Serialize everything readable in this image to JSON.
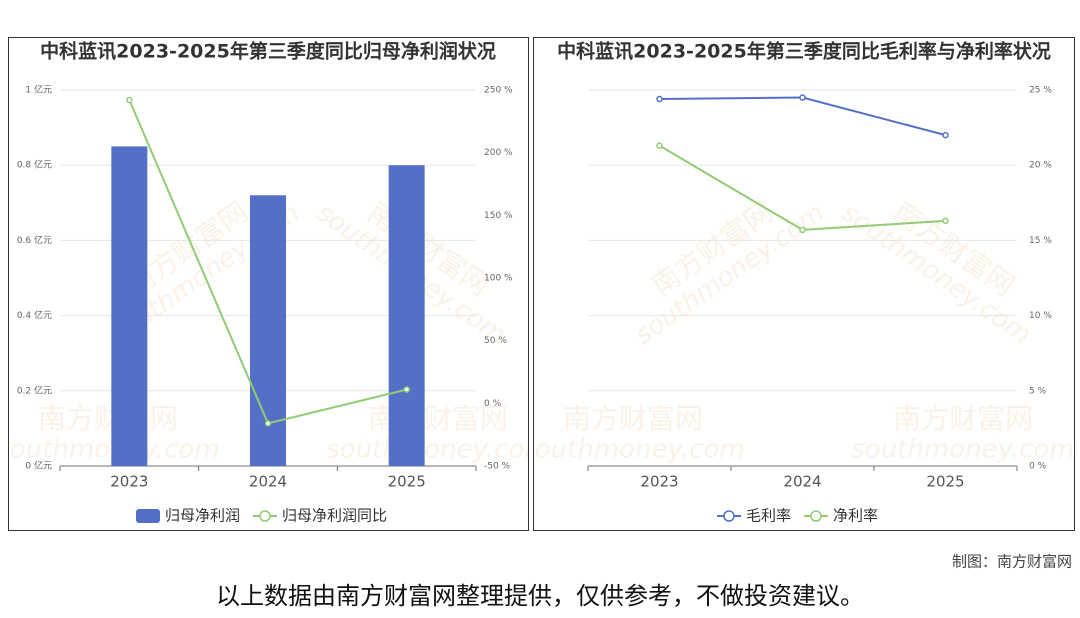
{
  "chart_data": [
    {
      "type": "bar",
      "title": "中科蓝讯2023-2025年第三季度同比归母净利润状况",
      "categories": [
        "2023",
        "2024",
        "2025"
      ],
      "series": [
        {
          "name": "归母净利润",
          "color": "#5470c6",
          "type": "bar",
          "values": [
            0.85,
            0.72,
            0.8
          ]
        },
        {
          "name": "归母净利润同比",
          "color": "#91cc75",
          "type": "line",
          "axis": "y2",
          "values": [
            242,
            -16,
            11
          ]
        }
      ],
      "ylim": [
        0,
        1
      ],
      "yticks": [
        {
          "value": 0,
          "label": "0 亿元"
        },
        {
          "value": 0.2,
          "label": "0.2 亿元"
        },
        {
          "value": 0.4,
          "label": "0.4 亿元"
        },
        {
          "value": 0.6,
          "label": "0.6 亿元"
        },
        {
          "value": 0.8,
          "label": "0.8 亿元"
        },
        {
          "value": 1,
          "label": "1 亿元"
        }
      ],
      "y2lim": [
        -50,
        250
      ],
      "y2ticks": [
        {
          "value": -50,
          "label": "-50 %"
        },
        {
          "value": 0,
          "label": "0 %"
        },
        {
          "value": 50,
          "label": "50 %"
        },
        {
          "value": 100,
          "label": "100 %"
        },
        {
          "value": 150,
          "label": "150 %"
        },
        {
          "value": 200,
          "label": "200 %"
        },
        {
          "value": 250,
          "label": "250 %"
        }
      ],
      "grid": true
    },
    {
      "type": "line",
      "title": "中科蓝讯2023-2025年第三季度同比毛利率与净利率状况",
      "categories": [
        "2023",
        "2024",
        "2025"
      ],
      "series": [
        {
          "name": "毛利率",
          "color": "#5470c6",
          "values": [
            24.4,
            24.5,
            22.0
          ]
        },
        {
          "name": "净利率",
          "color": "#91cc75",
          "values": [
            21.3,
            15.7,
            16.3
          ]
        }
      ],
      "ylim": [
        0,
        25
      ],
      "yticks": [
        {
          "value": 0,
          "label": "0 %"
        },
        {
          "value": 5,
          "label": "5 %"
        },
        {
          "value": 10,
          "label": "10 %"
        },
        {
          "value": 15,
          "label": "15 %"
        },
        {
          "value": 20,
          "label": "20 %"
        },
        {
          "value": 25,
          "label": "25 %"
        }
      ],
      "y_axis_position": "right",
      "grid": true
    }
  ],
  "watermark": {
    "cn": "南方财富网",
    "en": "southmoney.com"
  },
  "credit": "制图：南方财富网",
  "disclaimer": "以上数据由南方财富网整理提供，仅供参考，不做投资建议。"
}
